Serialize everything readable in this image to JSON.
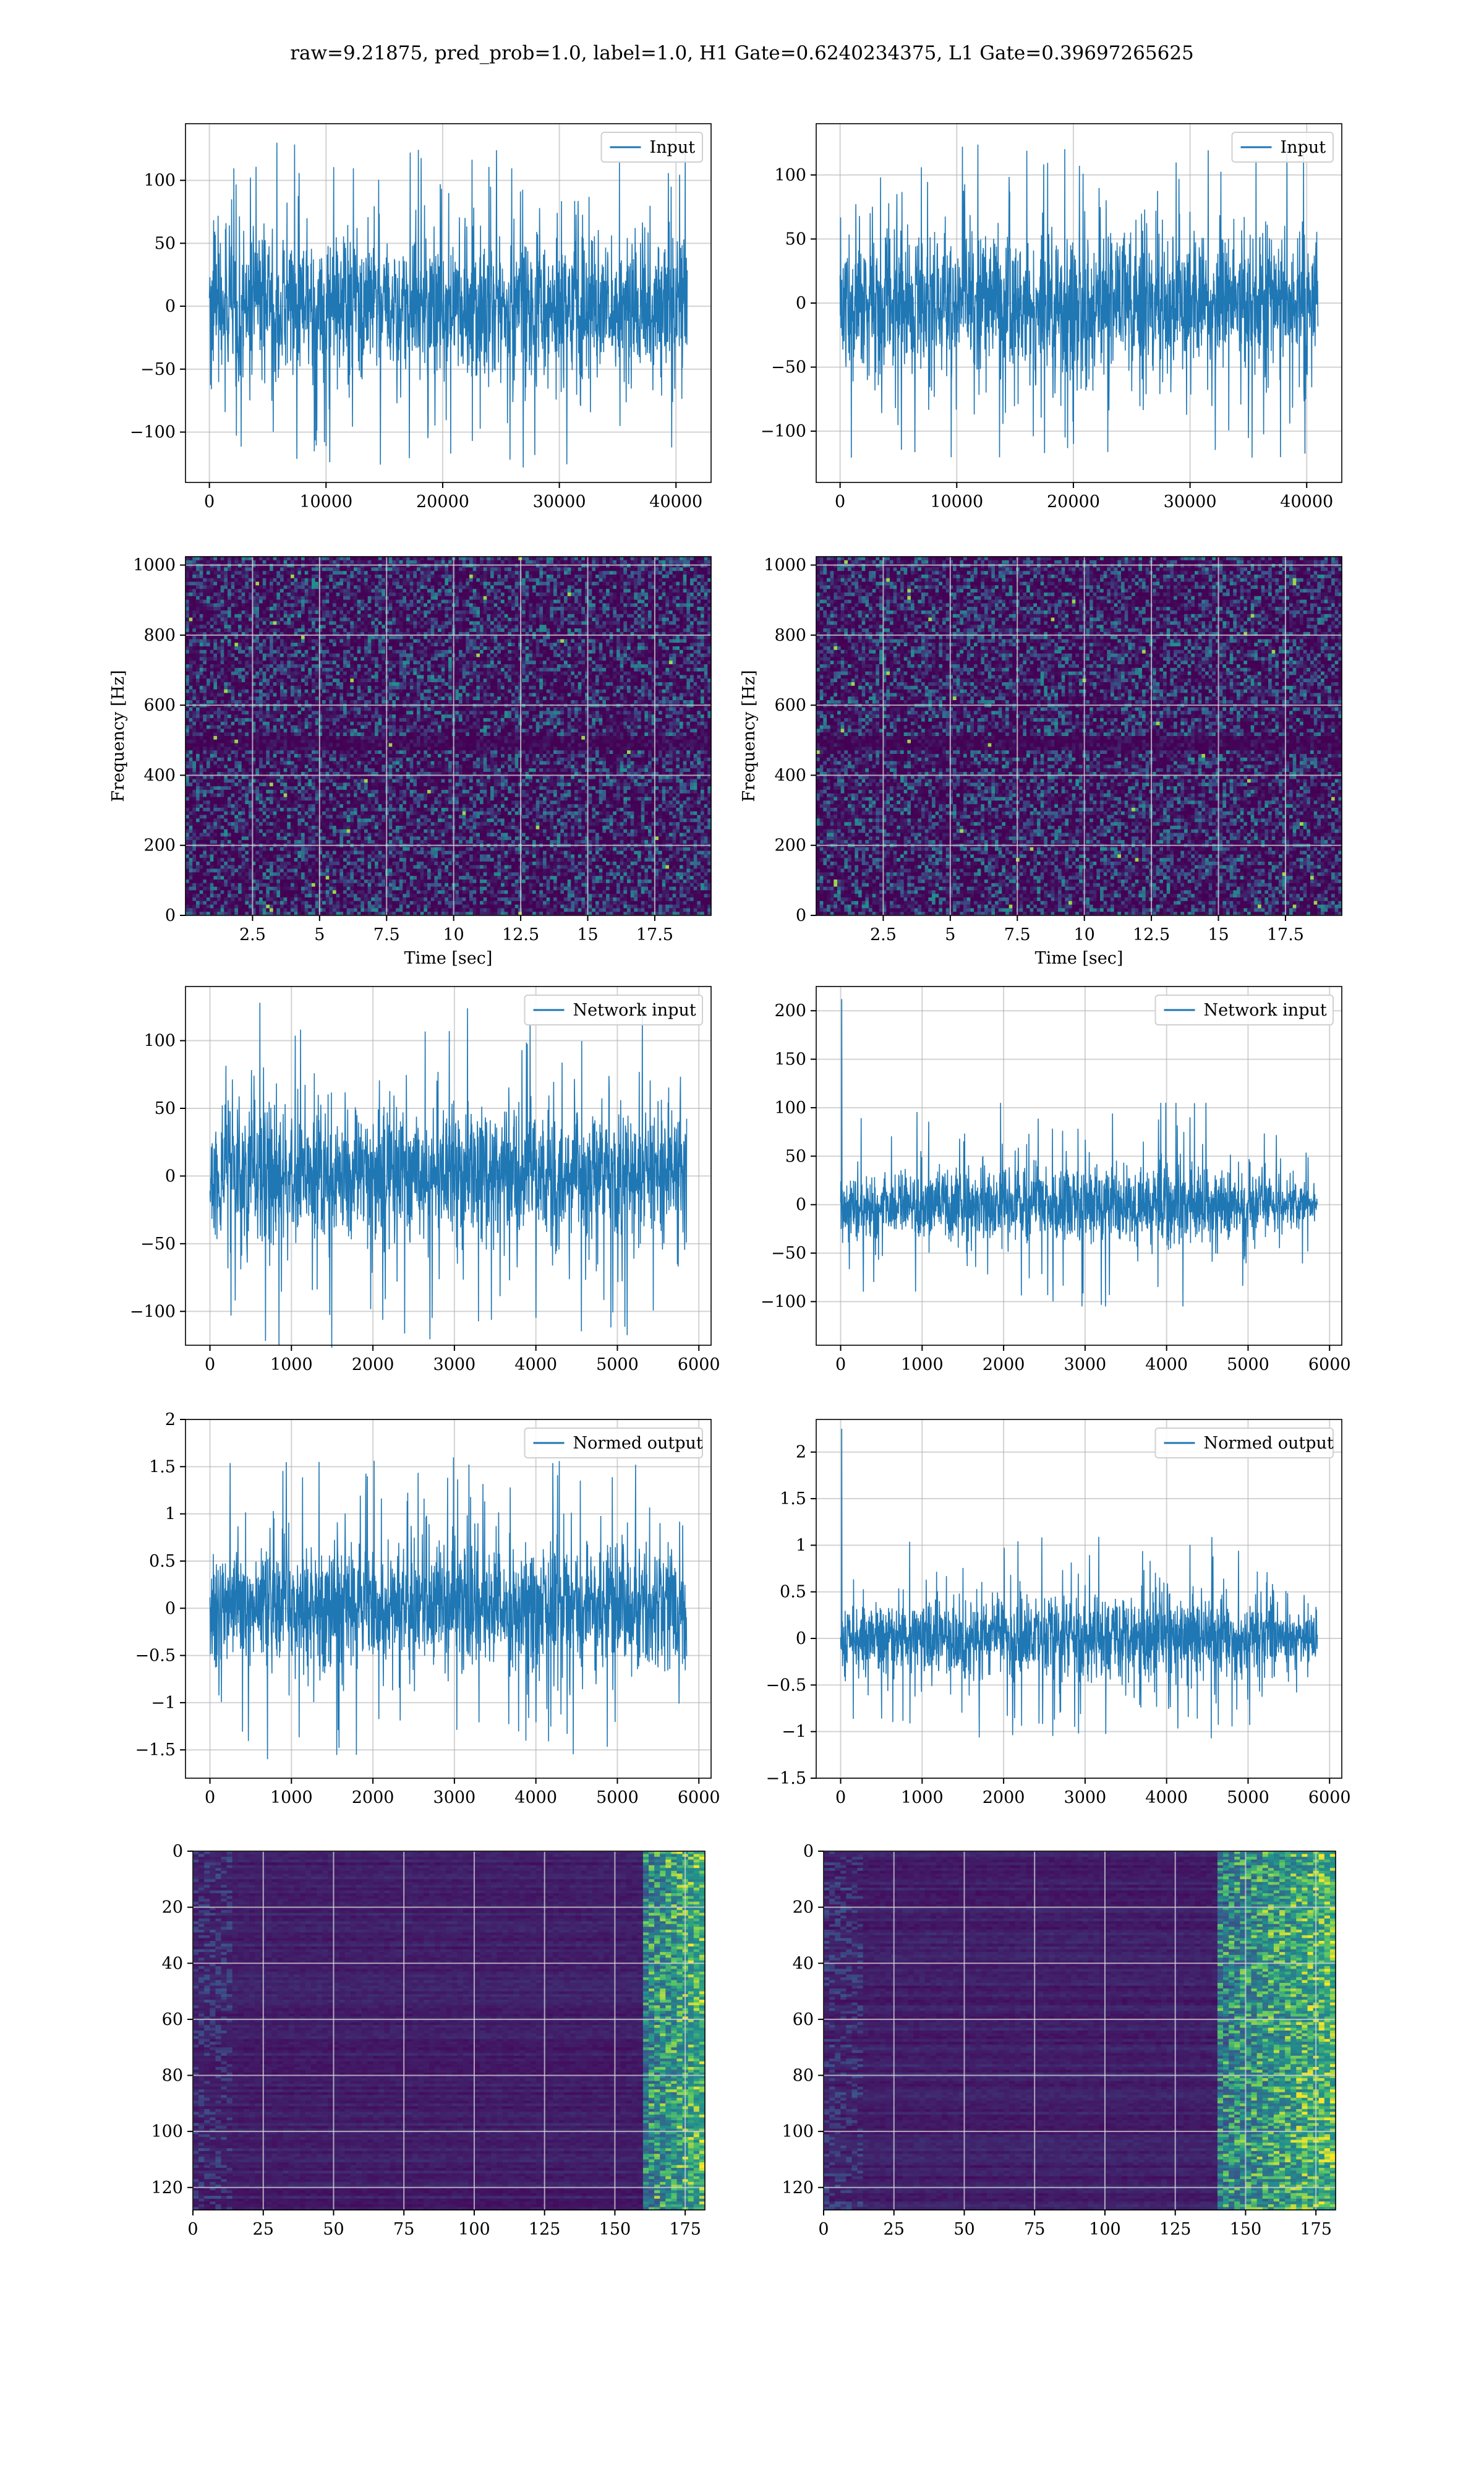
{
  "suptitle": "raw=9.21875, pred_prob=1.0, label=1.0, H1 Gate=0.6240234375, L1 Gate=0.39697265625",
  "colors": {
    "line": "#1f77b4",
    "grid": "#b0b0b0",
    "viridis_low": "#440154",
    "viridis_mid": "#21918c",
    "viridis_high": "#fde725"
  },
  "chart_data": [
    {
      "id": "input-left",
      "type": "line",
      "legend": "Input",
      "legend_loc": "upper right",
      "xlim": [
        -2048,
        43008
      ],
      "ylim": [
        -140,
        145
      ],
      "xticks": [
        0,
        10000,
        20000,
        30000,
        40000
      ],
      "yticks": [
        -100,
        -50,
        0,
        50,
        100
      ],
      "x_range": [
        0,
        40960
      ],
      "amplitude": 70,
      "peak": 130,
      "trend": "stationary",
      "xlabel": "",
      "ylabel": "",
      "grid": true
    },
    {
      "id": "input-right",
      "type": "line",
      "legend": "Input",
      "legend_loc": "upper right",
      "xlim": [
        -2048,
        43008
      ],
      "ylim": [
        -140,
        140
      ],
      "xticks": [
        0,
        10000,
        20000,
        30000,
        40000
      ],
      "yticks": [
        -100,
        -50,
        0,
        50,
        100
      ],
      "x_range": [
        0,
        40960
      ],
      "amplitude": 68,
      "peak": 125,
      "trend": "stationary",
      "xlabel": "",
      "ylabel": "",
      "grid": true
    },
    {
      "id": "spectrogram-left",
      "type": "heatmap",
      "colormap": "viridis",
      "xlim": [
        0,
        19.6
      ],
      "ylim": [
        0,
        1024
      ],
      "xticks": [
        2.5,
        5.0,
        7.5,
        10.0,
        12.5,
        15.0,
        17.5
      ],
      "yticks": [
        0,
        200,
        400,
        600,
        800,
        1000
      ],
      "xlabel": "Time [sec]",
      "ylabel": "Frequency [Hz]",
      "grid": true,
      "dark_band_hz": [
        470,
        510
      ]
    },
    {
      "id": "spectrogram-right",
      "type": "heatmap",
      "colormap": "viridis",
      "xlim": [
        0,
        19.6
      ],
      "ylim": [
        0,
        1024
      ],
      "xticks": [
        2.5,
        5.0,
        7.5,
        10.0,
        12.5,
        15.0,
        17.5
      ],
      "yticks": [
        0,
        200,
        400,
        600,
        800,
        1000
      ],
      "xlabel": "Time [sec]",
      "ylabel": "Frequency [Hz]",
      "grid": true,
      "dark_band_hz": [
        470,
        510
      ]
    },
    {
      "id": "network-input-left",
      "type": "line",
      "legend": "Network input",
      "legend_loc": "upper right",
      "xlim": [
        -300,
        6150
      ],
      "ylim": [
        -125,
        140
      ],
      "xticks": [
        0,
        1000,
        2000,
        3000,
        4000,
        5000,
        6000
      ],
      "yticks": [
        -100,
        -50,
        0,
        50,
        100
      ],
      "x_range": [
        0,
        5850
      ],
      "amplitude": 60,
      "peak": 128,
      "trend": "stationary",
      "xlabel": "",
      "ylabel": "",
      "grid": true
    },
    {
      "id": "network-input-right",
      "type": "line",
      "legend": "Network input",
      "legend_loc": "upper right",
      "xlim": [
        -300,
        6150
      ],
      "ylim": [
        -145,
        225
      ],
      "xticks": [
        0,
        1000,
        2000,
        3000,
        4000,
        5000,
        6000
      ],
      "yticks": [
        -100,
        -50,
        0,
        50,
        100,
        150,
        200
      ],
      "x_range": [
        0,
        5850
      ],
      "amplitude": 45,
      "peak": 105,
      "spike": 212,
      "trend": "tapering",
      "xlabel": "",
      "ylabel": "",
      "grid": true
    },
    {
      "id": "normed-output-left",
      "type": "line",
      "legend": "Normed output",
      "legend_loc": "upper right",
      "xlim": [
        -300,
        6150
      ],
      "ylim": [
        -1.8,
        2.0
      ],
      "xticks": [
        0,
        1000,
        2000,
        3000,
        4000,
        5000,
        6000
      ],
      "yticks": [
        -1.5,
        -1.0,
        -0.5,
        0.0,
        0.5,
        1.0,
        1.5,
        2.0
      ],
      "x_range": [
        0,
        5850
      ],
      "amplitude": 0.78,
      "peak": 1.6,
      "trend": "stationary",
      "xlabel": "",
      "ylabel": "",
      "grid": true
    },
    {
      "id": "normed-output-right",
      "type": "line",
      "legend": "Normed output",
      "legend_loc": "upper right",
      "xlim": [
        -300,
        6150
      ],
      "ylim": [
        -1.5,
        2.35
      ],
      "xticks": [
        0,
        1000,
        2000,
        3000,
        4000,
        5000,
        6000
      ],
      "yticks": [
        -1.5,
        -1.0,
        -0.5,
        0.0,
        0.5,
        1.0,
        1.5,
        2.0
      ],
      "x_range": [
        0,
        5850
      ],
      "amplitude": 0.52,
      "peak": 1.1,
      "spike": 2.25,
      "trend": "tapering",
      "xlabel": "",
      "ylabel": "",
      "grid": true
    },
    {
      "id": "activation-left",
      "type": "heatmap",
      "colormap": "viridis",
      "xlim": [
        0,
        182
      ],
      "ylim": [
        128,
        0
      ],
      "xticks": [
        0,
        25,
        50,
        75,
        100,
        125,
        150,
        175
      ],
      "yticks": [
        0,
        20,
        40,
        60,
        80,
        100,
        120
      ],
      "xlabel": "",
      "ylabel": "",
      "grid": true,
      "hot_columns": [
        160,
        182
      ]
    },
    {
      "id": "activation-right",
      "type": "heatmap",
      "colormap": "viridis",
      "xlim": [
        0,
        182
      ],
      "ylim": [
        128,
        0
      ],
      "xticks": [
        0,
        25,
        50,
        75,
        100,
        125,
        150,
        175
      ],
      "yticks": [
        0,
        20,
        40,
        60,
        80,
        100,
        120
      ],
      "xlabel": "",
      "ylabel": "",
      "grid": true,
      "hot_columns": [
        140,
        182
      ]
    }
  ]
}
